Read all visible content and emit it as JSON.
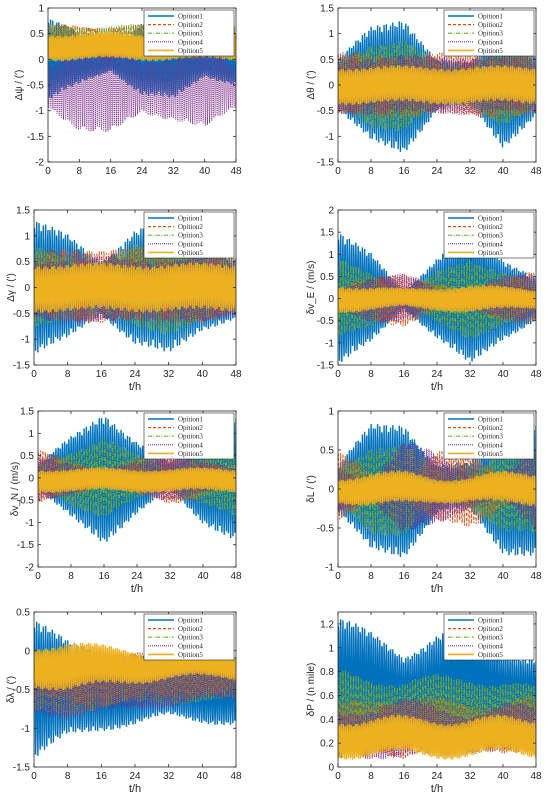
{
  "figure": {
    "series_names": [
      "Opition1",
      "Opition2",
      "Opition3",
      "Opition4",
      "Opition5"
    ],
    "series_colors": [
      "#0072bd",
      "#d95319",
      "#77ac30",
      "#7e2f8e",
      "#edb120"
    ],
    "series_styles": [
      "solid",
      "dashed",
      "dashdot",
      "dotted",
      "solid"
    ]
  },
  "chart_data": [
    {
      "type": "line",
      "xlabel": "",
      "ylabel": "Δψ / (′)",
      "xlim": [
        0,
        48
      ],
      "ylim": [
        -2,
        1
      ],
      "xticks": [
        "0",
        "8",
        "16",
        "24",
        "32",
        "40",
        "48"
      ],
      "yticks": [
        "-2",
        "-1.5",
        "-1",
        "-0.5",
        "0",
        "0.5",
        "1"
      ],
      "legend": "top-right",
      "series": [
        {
          "name": "Opition1",
          "center": 0.0,
          "env": [
            0.8,
            0.5,
            0.2,
            0.7,
            0.8,
            0.3,
            0.5
          ]
        },
        {
          "name": "Opition2",
          "center": 0.35,
          "env": [
            0.3,
            0.3,
            0.3,
            0.3,
            0.3,
            0.3,
            0.3
          ]
        },
        {
          "name": "Opition3",
          "center": 0.35,
          "env": [
            0.3,
            0.3,
            0.3,
            0.3,
            0.3,
            0.3,
            0.3
          ]
        },
        {
          "name": "Opition4",
          "center": -0.55,
          "env": [
            0.4,
            0.8,
            0.9,
            0.5,
            0.6,
            0.8,
            0.4
          ]
        },
        {
          "name": "Opition5",
          "center": 0.25,
          "env": [
            0.25,
            0.25,
            0.25,
            0.25,
            0.25,
            0.25,
            0.25
          ]
        }
      ]
    },
    {
      "type": "line",
      "xlabel": "",
      "ylabel": "Δθ / (′)",
      "xlim": [
        0,
        48
      ],
      "ylim": [
        -1.5,
        1.5
      ],
      "xticks": [
        "0",
        "8",
        "16",
        "24",
        "32",
        "40",
        "48"
      ],
      "yticks": [
        "-1.5",
        "-1",
        "-0.5",
        "0",
        "0.5",
        "1",
        "1.5"
      ],
      "legend": "top-right",
      "series": [
        {
          "name": "Opition1",
          "center": 0.0,
          "env": [
            0.5,
            1.1,
            1.3,
            0.5,
            0.4,
            1.2,
            0.6
          ]
        },
        {
          "name": "Opition2",
          "center": 0.0,
          "env": [
            0.6,
            0.6,
            0.6,
            0.6,
            0.6,
            0.6,
            0.6
          ]
        },
        {
          "name": "Opition3",
          "center": 0.0,
          "env": [
            0.4,
            0.8,
            0.9,
            0.4,
            0.4,
            0.8,
            0.5
          ]
        },
        {
          "name": "Opition4",
          "center": 0.0,
          "env": [
            0.55,
            0.55,
            0.55,
            0.55,
            0.55,
            0.55,
            0.55
          ]
        },
        {
          "name": "Opition5",
          "center": 0.0,
          "env": [
            0.35,
            0.35,
            0.35,
            0.35,
            0.35,
            0.35,
            0.35
          ]
        }
      ]
    },
    {
      "type": "line",
      "xlabel": "t/h",
      "ylabel": "Δγ / (′)",
      "xlim": [
        0,
        48
      ],
      "ylim": [
        -1.5,
        1.5
      ],
      "xticks": [
        "0",
        "8",
        "16",
        "24",
        "32",
        "40",
        "48"
      ],
      "yticks": [
        "-1.5",
        "-1",
        "-0.5",
        "0",
        "0.5",
        "1",
        "1.5"
      ],
      "legend": "top-right",
      "series": [
        {
          "name": "Opition1",
          "center": 0.0,
          "env": [
            1.3,
            1.0,
            0.5,
            1.1,
            1.3,
            0.8,
            0.6
          ]
        },
        {
          "name": "Opition2",
          "center": 0.05,
          "env": [
            0.6,
            0.7,
            0.7,
            0.7,
            0.7,
            0.7,
            0.6
          ]
        },
        {
          "name": "Opition3",
          "center": 0.0,
          "env": [
            0.8,
            0.6,
            0.5,
            0.8,
            0.9,
            0.6,
            0.5
          ]
        },
        {
          "name": "Opition4",
          "center": -0.05,
          "env": [
            0.55,
            0.6,
            0.65,
            0.6,
            0.6,
            0.65,
            0.55
          ]
        },
        {
          "name": "Opition5",
          "center": 0.0,
          "env": [
            0.45,
            0.45,
            0.45,
            0.45,
            0.45,
            0.45,
            0.45
          ]
        }
      ]
    },
    {
      "type": "line",
      "xlabel": "t/h",
      "ylabel": "δv_E / (m/s)",
      "xlim": [
        0,
        48
      ],
      "ylim": [
        -1.5,
        2
      ],
      "xticks": [
        "0",
        "8",
        "16",
        "24",
        "32",
        "40",
        "48"
      ],
      "yticks": [
        "-1.5",
        "-1",
        "-0.5",
        "0",
        "0.5",
        "1",
        "1.5",
        "2"
      ],
      "legend": "top-right",
      "series": [
        {
          "name": "Opition1",
          "center": 0.0,
          "env": [
            1.5,
            1.0,
            0.2,
            0.9,
            1.5,
            0.9,
            0.5
          ]
        },
        {
          "name": "Opition2",
          "center": 0.0,
          "env": [
            0.2,
            0.5,
            0.6,
            0.3,
            0.2,
            0.5,
            0.6
          ]
        },
        {
          "name": "Opition3",
          "center": 0.0,
          "env": [
            0.9,
            0.6,
            0.1,
            0.6,
            0.9,
            0.6,
            0.3
          ]
        },
        {
          "name": "Opition4",
          "center": 0.0,
          "env": [
            0.2,
            0.5,
            0.55,
            0.2,
            0.2,
            0.5,
            0.5
          ]
        },
        {
          "name": "Opition5",
          "center": 0.0,
          "env": [
            0.3,
            0.25,
            0.2,
            0.25,
            0.3,
            0.25,
            0.2
          ]
        }
      ]
    },
    {
      "type": "line",
      "xlabel": "t/h",
      "ylabel": "δv_N / (m/s)",
      "xlim": [
        0,
        48
      ],
      "ylim": [
        -2,
        1.5
      ],
      "xticks": [
        "0",
        "8",
        "16",
        "24",
        "32",
        "40",
        "48"
      ],
      "yticks": [
        "-2",
        "-1.5",
        "-1",
        "-0.5",
        "0",
        "0.5",
        "1",
        "1.5"
      ],
      "legend": "top-right",
      "series": [
        {
          "name": "Opition1",
          "center": 0.0,
          "env": [
            0.3,
            0.9,
            1.45,
            0.8,
            0.3,
            1.0,
            1.4
          ]
        },
        {
          "name": "Opition2",
          "center": 0.0,
          "env": [
            0.6,
            0.4,
            0.15,
            0.4,
            0.6,
            0.4,
            0.2
          ]
        },
        {
          "name": "Opition3",
          "center": 0.0,
          "env": [
            0.2,
            0.6,
            0.9,
            0.5,
            0.2,
            0.6,
            0.9
          ]
        },
        {
          "name": "Opition4",
          "center": 0.0,
          "env": [
            0.5,
            0.35,
            0.15,
            0.35,
            0.5,
            0.35,
            0.2
          ]
        },
        {
          "name": "Opition5",
          "center": -0.05,
          "env": [
            0.25,
            0.25,
            0.25,
            0.25,
            0.25,
            0.25,
            0.25
          ]
        }
      ]
    },
    {
      "type": "line",
      "xlabel": "t/h",
      "ylabel": "δL / (′)",
      "xlim": [
        0,
        48
      ],
      "ylim": [
        -1,
        1
      ],
      "xticks": [
        "0",
        "8",
        "16",
        "24",
        "32",
        "40",
        "48"
      ],
      "yticks": [
        "-1",
        "-0.5",
        "0",
        "0.5",
        "1"
      ],
      "legend": "top-right",
      "series": [
        {
          "name": "Opition1",
          "center": 0.0,
          "env": [
            0.3,
            0.8,
            0.85,
            0.3,
            0.3,
            0.8,
            0.85
          ]
        },
        {
          "name": "Opition2",
          "center": 0.0,
          "env": [
            0.45,
            0.2,
            0.1,
            0.45,
            0.5,
            0.2,
            0.1
          ]
        },
        {
          "name": "Opition3",
          "center": 0.0,
          "env": [
            0.2,
            0.55,
            0.6,
            0.2,
            0.2,
            0.55,
            0.6
          ]
        },
        {
          "name": "Opition4",
          "center": 0.0,
          "env": [
            0.3,
            0.1,
            0.6,
            0.45,
            0.2,
            0.15,
            0.55
          ]
        },
        {
          "name": "Opition5",
          "center": 0.0,
          "env": [
            0.15,
            0.2,
            0.2,
            0.15,
            0.15,
            0.2,
            0.2
          ]
        }
      ]
    },
    {
      "type": "line",
      "xlabel": "t/h",
      "ylabel": "δλ / (′)",
      "xlim": [
        0,
        48
      ],
      "ylim": [
        -1.5,
        0.5
      ],
      "xticks": [
        "0",
        "8",
        "16",
        "24",
        "32",
        "40",
        "48"
      ],
      "yticks": [
        "-1.5",
        "-1",
        "-0.5",
        "0",
        "0.5"
      ],
      "legend": "top-right",
      "series": [
        {
          "name": "Opition1",
          "center": -0.5,
          "env": [
            0.9,
            0.6,
            0.5,
            0.45,
            0.35,
            0.4,
            0.45
          ]
        },
        {
          "name": "Opition2",
          "center": -0.35,
          "env": [
            0.25,
            0.3,
            0.35,
            0.3,
            0.25,
            0.2,
            0.2
          ]
        },
        {
          "name": "Opition3",
          "center": -0.4,
          "env": [
            0.4,
            0.4,
            0.35,
            0.3,
            0.25,
            0.25,
            0.25
          ]
        },
        {
          "name": "Opition4",
          "center": -0.45,
          "env": [
            0.35,
            0.4,
            0.35,
            0.3,
            0.25,
            0.2,
            0.2
          ]
        },
        {
          "name": "Opition5",
          "center": -0.2,
          "env": [
            0.25,
            0.3,
            0.25,
            0.2,
            0.15,
            0.15,
            0.15
          ]
        }
      ]
    },
    {
      "type": "line",
      "xlabel": "t/h",
      "ylabel": "δP / (n mile)",
      "xlim": [
        0,
        48
      ],
      "ylim": [
        0,
        1.3
      ],
      "xticks": [
        "0",
        "8",
        "16",
        "24",
        "32",
        "40",
        "48"
      ],
      "yticks": [
        "0",
        "0.2",
        "0.4",
        "0.6",
        "0.8",
        "1",
        "1.2"
      ],
      "legend": "top-right",
      "series": [
        {
          "name": "Opition1",
          "center": 0.65,
          "env": [
            0.6,
            0.45,
            0.3,
            0.45,
            0.5,
            0.35,
            0.25
          ]
        },
        {
          "name": "Opition2",
          "center": 0.35,
          "env": [
            0.15,
            0.2,
            0.25,
            0.2,
            0.15,
            0.2,
            0.25
          ]
        },
        {
          "name": "Opition3",
          "center": 0.45,
          "env": [
            0.35,
            0.3,
            0.25,
            0.3,
            0.3,
            0.25,
            0.2
          ]
        },
        {
          "name": "Opition4",
          "center": 0.3,
          "env": [
            0.15,
            0.2,
            0.25,
            0.2,
            0.15,
            0.2,
            0.2
          ]
        },
        {
          "name": "Opition5",
          "center": 0.25,
          "env": [
            0.15,
            0.15,
            0.15,
            0.15,
            0.15,
            0.15,
            0.15
          ]
        }
      ]
    }
  ]
}
